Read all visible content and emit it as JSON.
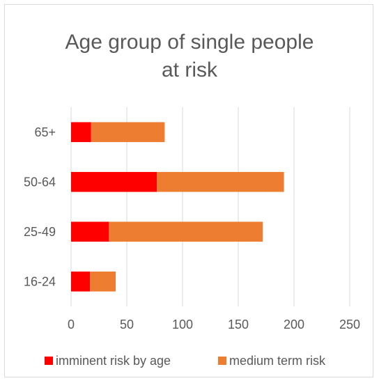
{
  "colors": {
    "imminent": "#ff0000",
    "medium": "#ed7d31",
    "grid": "#d9d9d9",
    "text": "#595959"
  },
  "chart_data": {
    "type": "bar",
    "orientation": "horizontal",
    "stacked": true,
    "title_lines": [
      "Age group of single people",
      "at risk"
    ],
    "categories": [
      "65+",
      "50-64",
      "25-49",
      "16-24"
    ],
    "series": [
      {
        "name": "imminent risk by age",
        "values": [
          18,
          77,
          34,
          17
        ]
      },
      {
        "name": "medium term risk",
        "values": [
          66,
          114,
          138,
          23
        ]
      }
    ],
    "xlim": [
      0,
      250
    ],
    "xticks": [
      "0",
      "50",
      "100",
      "150",
      "200",
      "250"
    ],
    "grid": true,
    "legend_position": "bottom"
  }
}
